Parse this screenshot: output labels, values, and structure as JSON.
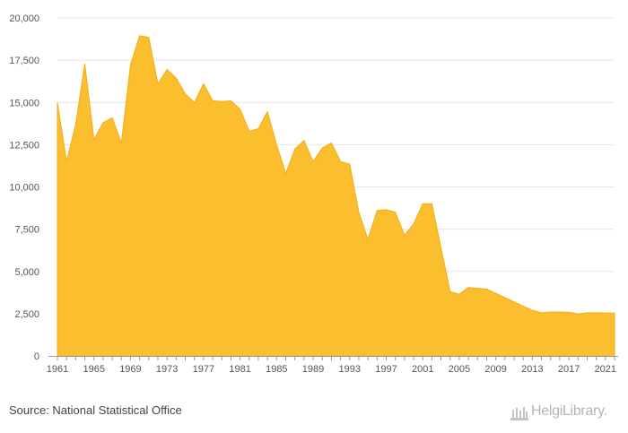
{
  "source": "Source: National Statistical Office",
  "logo": {
    "text": "HelgiLibrary."
  },
  "colors": {
    "fill": "#FBBE2F",
    "stroke": "#F3AE14",
    "grid": "#E6E6E6",
    "axis": "#999999"
  },
  "chart_data": {
    "type": "area",
    "title": "",
    "xlabel": "",
    "ylabel": "",
    "ylim": [
      0,
      20000
    ],
    "xlim": [
      1961,
      2022
    ],
    "grid": true,
    "legend": "none",
    "y_ticks": [
      0,
      2500,
      5000,
      7500,
      10000,
      12500,
      15000,
      17500,
      20000
    ],
    "y_tick_labels": [
      "0",
      "2,500",
      "5,000",
      "7,500",
      "10,000",
      "12,500",
      "15,000",
      "17,500",
      "20,000"
    ],
    "x_ticks": [
      1961,
      1965,
      1969,
      1973,
      1977,
      1981,
      1985,
      1989,
      1993,
      1997,
      2001,
      2005,
      2009,
      2013,
      2017,
      2021
    ],
    "x_tick_labels": [
      "1961",
      "1965",
      "1969",
      "1973",
      "1977",
      "1981",
      "1985",
      "1989",
      "1993",
      "1997",
      "2001",
      "2005",
      "2009",
      "2013",
      "2017",
      "2021"
    ],
    "x": [
      1961,
      1962,
      1963,
      1964,
      1965,
      1966,
      1967,
      1968,
      1969,
      1970,
      1971,
      1972,
      1973,
      1974,
      1975,
      1976,
      1977,
      1978,
      1979,
      1980,
      1981,
      1982,
      1983,
      1984,
      1985,
      1986,
      1987,
      1988,
      1989,
      1990,
      1991,
      1992,
      1993,
      1994,
      1995,
      1996,
      1997,
      1998,
      1999,
      2000,
      2001,
      2002,
      2003,
      2004,
      2005,
      2006,
      2007,
      2008,
      2009,
      2010,
      2011,
      2012,
      2013,
      2014,
      2015,
      2016,
      2017,
      2018,
      2019,
      2020,
      2021,
      2022
    ],
    "values": [
      15000,
      11500,
      13700,
      17300,
      12800,
      13800,
      14100,
      12600,
      17200,
      18950,
      18850,
      16100,
      16950,
      16450,
      15500,
      15000,
      16100,
      15100,
      15050,
      15100,
      14600,
      13300,
      13450,
      14450,
      12500,
      10800,
      12250,
      12750,
      11500,
      12300,
      12600,
      11500,
      11350,
      8500,
      6900,
      8600,
      8650,
      8500,
      7150,
      7800,
      9000,
      9000,
      6400,
      3800,
      3650,
      4050,
      4000,
      3950,
      3700,
      3450,
      3200,
      2950,
      2700,
      2550,
      2600,
      2600,
      2580,
      2480,
      2550,
      2550,
      2540,
      2540
    ]
  }
}
